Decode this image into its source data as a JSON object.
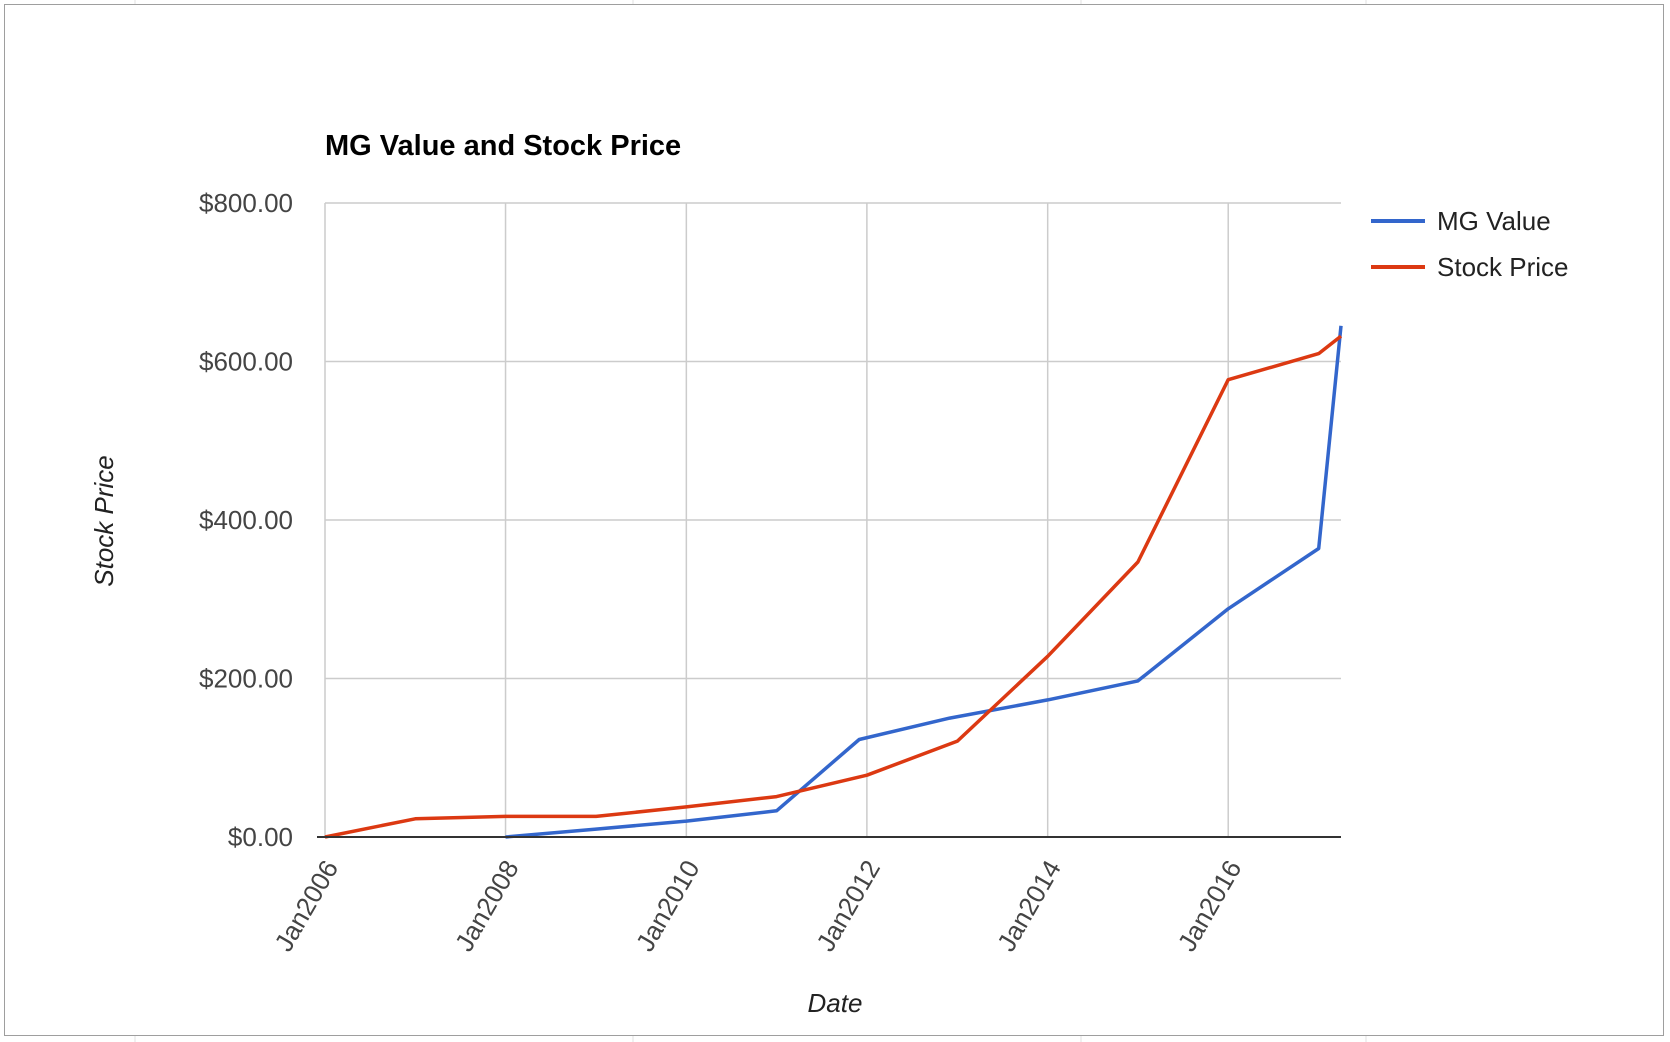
{
  "chart_data": {
    "type": "line",
    "title": "MG Value and Stock Price",
    "xlabel": "Date",
    "ylabel": "Stock Price",
    "x_ticks": [
      "Jan2006",
      "Jan2008",
      "Jan2010",
      "Jan2012",
      "Jan2014",
      "Jan2016"
    ],
    "xlim": [
      "2006-01-01",
      "2017-04-01"
    ],
    "y_ticks": [
      "$0.00",
      "$200.00",
      "$400.00",
      "$600.00",
      "$800.00"
    ],
    "ylim": [
      0,
      800
    ],
    "grid": true,
    "legend_position": "right",
    "series": [
      {
        "name": "MG Value",
        "color": "#3366cc",
        "points": [
          {
            "x": "2008-01-01",
            "y": 0
          },
          {
            "x": "2009-01-01",
            "y": 10
          },
          {
            "x": "2010-01-01",
            "y": 20
          },
          {
            "x": "2011-01-01",
            "y": 33
          },
          {
            "x": "2011-12-01",
            "y": 123
          },
          {
            "x": "2012-12-01",
            "y": 150
          },
          {
            "x": "2014-01-01",
            "y": 173
          },
          {
            "x": "2015-01-01",
            "y": 197
          },
          {
            "x": "2016-01-01",
            "y": 288
          },
          {
            "x": "2017-01-01",
            "y": 364
          },
          {
            "x": "2017-04-01",
            "y": 645
          }
        ]
      },
      {
        "name": "Stock Price",
        "color": "#dc3912",
        "points": [
          {
            "x": "2006-01-01",
            "y": 0
          },
          {
            "x": "2007-01-01",
            "y": 23
          },
          {
            "x": "2008-01-01",
            "y": 26
          },
          {
            "x": "2009-01-01",
            "y": 26
          },
          {
            "x": "2010-01-01",
            "y": 38
          },
          {
            "x": "2011-01-01",
            "y": 51
          },
          {
            "x": "2012-01-01",
            "y": 78
          },
          {
            "x": "2013-01-01",
            "y": 121
          },
          {
            "x": "2014-01-01",
            "y": 228
          },
          {
            "x": "2015-01-01",
            "y": 347
          },
          {
            "x": "2016-01-01",
            "y": 577
          },
          {
            "x": "2017-01-01",
            "y": 610
          },
          {
            "x": "2017-04-01",
            "y": 632
          }
        ]
      }
    ]
  }
}
